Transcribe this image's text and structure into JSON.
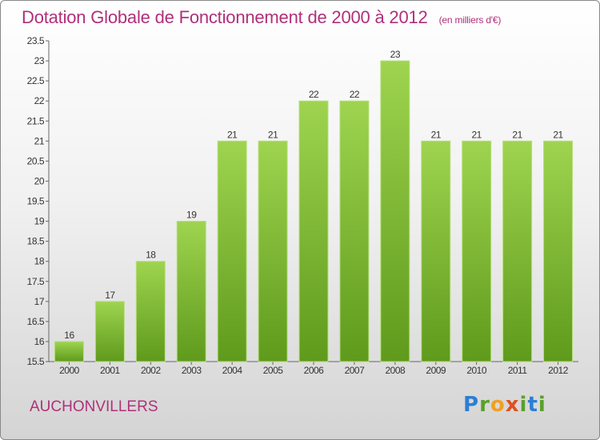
{
  "header": {
    "title": "Dotation Globale de Fonctionnement de 2000 à 2012",
    "unit": "(en milliers d'€)"
  },
  "footer": {
    "place": "AUCHONVILLERS",
    "logo": [
      "P",
      "r",
      "o",
      "x",
      "i",
      "t",
      "i"
    ]
  },
  "colors": {
    "bar": "#82c033",
    "bar_light": "#9ed44f",
    "bar_dark": "#5f9a1c",
    "title": "#b0307a"
  },
  "chart_data": {
    "type": "bar",
    "title": "Dotation Globale de Fonctionnement de 2000 à 2012",
    "categories": [
      "2000",
      "2001",
      "2002",
      "2003",
      "2004",
      "2005",
      "2006",
      "2007",
      "2008",
      "2009",
      "2010",
      "2011",
      "2012"
    ],
    "values": [
      16,
      17,
      18,
      19,
      21,
      21,
      22,
      22,
      23,
      21,
      21,
      21,
      21
    ],
    "data_labels": [
      "16",
      "17",
      "18",
      "19",
      "21",
      "21",
      "22",
      "22",
      "23",
      "21",
      "21",
      "21",
      "21"
    ],
    "ylim": [
      15.5,
      23.5
    ],
    "yticks": [
      "15.5",
      "16",
      "16.5",
      "17",
      "17.5",
      "18",
      "18.5",
      "19",
      "19.5",
      "20",
      "20.5",
      "21",
      "21.5",
      "22",
      "22.5",
      "23",
      "23.5"
    ],
    "grid": false,
    "xlabel": "",
    "ylabel": ""
  }
}
